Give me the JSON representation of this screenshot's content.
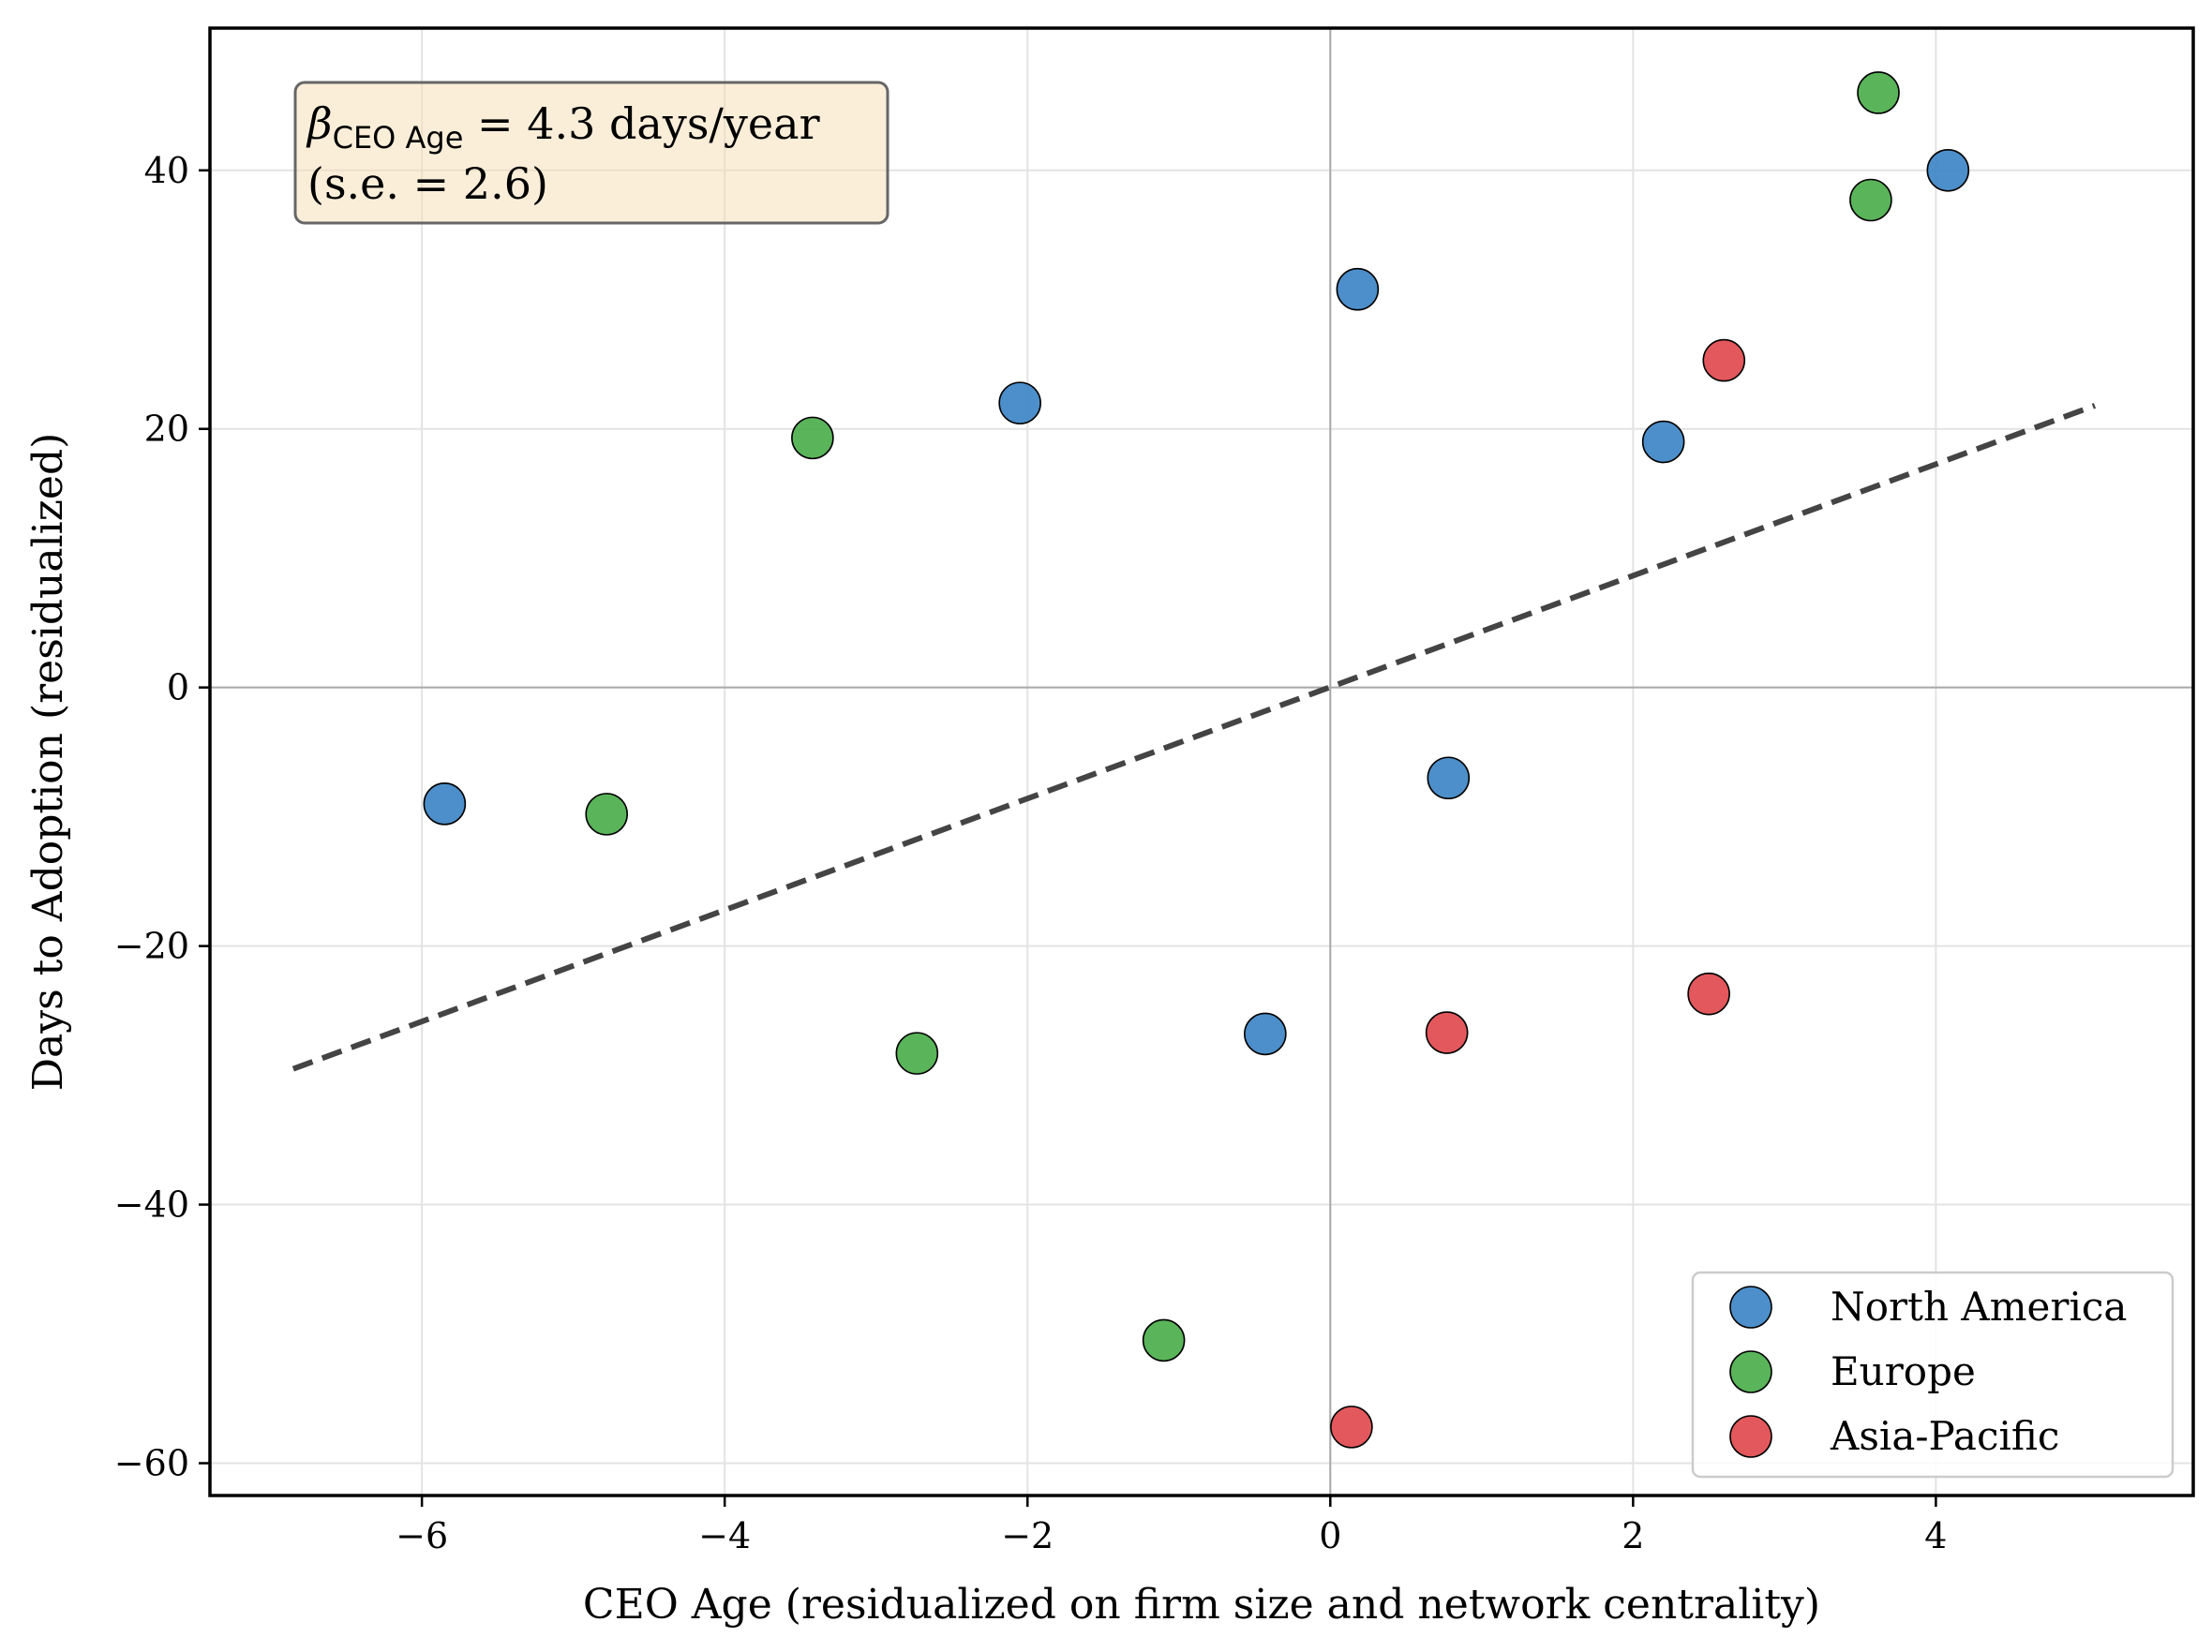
{
  "chart_data": {
    "type": "scatter",
    "title": "",
    "xlabel": "CEO Age (residualized on firm size and network centrality)",
    "ylabel": "Days to Adoption (residualized)",
    "xlim": [
      -7.4,
      5.7
    ],
    "ylim": [
      -62.5,
      51
    ],
    "xticks": [
      -6,
      -4,
      -2,
      0,
      2,
      4
    ],
    "yticks": [
      -60,
      -40,
      -20,
      0,
      20,
      40
    ],
    "xtick_labels": [
      "−6",
      "−4",
      "−2",
      "0",
      "2",
      "4"
    ],
    "ytick_labels": [
      "−60",
      "−40",
      "−20",
      "0",
      "20",
      "40"
    ],
    "grid": true,
    "zero_lines": true,
    "legend_position": "lower-right",
    "series": [
      {
        "name": "North America",
        "color": "#3d85c6",
        "points": [
          [
            -5.85,
            -9
          ],
          [
            -2.05,
            22
          ],
          [
            0.18,
            30.8
          ],
          [
            2.2,
            19
          ],
          [
            4.08,
            40
          ],
          [
            0.78,
            -7
          ],
          [
            -0.43,
            -26.8
          ]
        ]
      },
      {
        "name": "Europe",
        "color": "#4cae4c",
        "points": [
          [
            -4.78,
            -9.8
          ],
          [
            -3.42,
            19.3
          ],
          [
            -2.73,
            -28.3
          ],
          [
            -1.1,
            -50.5
          ],
          [
            3.62,
            46
          ],
          [
            3.57,
            37.7
          ]
        ]
      },
      {
        "name": "Asia-Pacific",
        "color": "#e04a4e",
        "points": [
          [
            2.6,
            25.3
          ],
          [
            2.5,
            -23.7
          ],
          [
            0.77,
            -26.7
          ],
          [
            0.14,
            -57.2
          ]
        ]
      }
    ],
    "fit_line": {
      "style": "dashed",
      "color": "#444444",
      "x": [
        -6.85,
        5.05
      ],
      "y": [
        -29.5,
        21.8
      ]
    },
    "annotation": {
      "beta_symbol": "β",
      "subscript": "CEO Age",
      "line1_rest": " = 4.3 days/year",
      "line2": "(s.e. = 2.6)"
    }
  }
}
